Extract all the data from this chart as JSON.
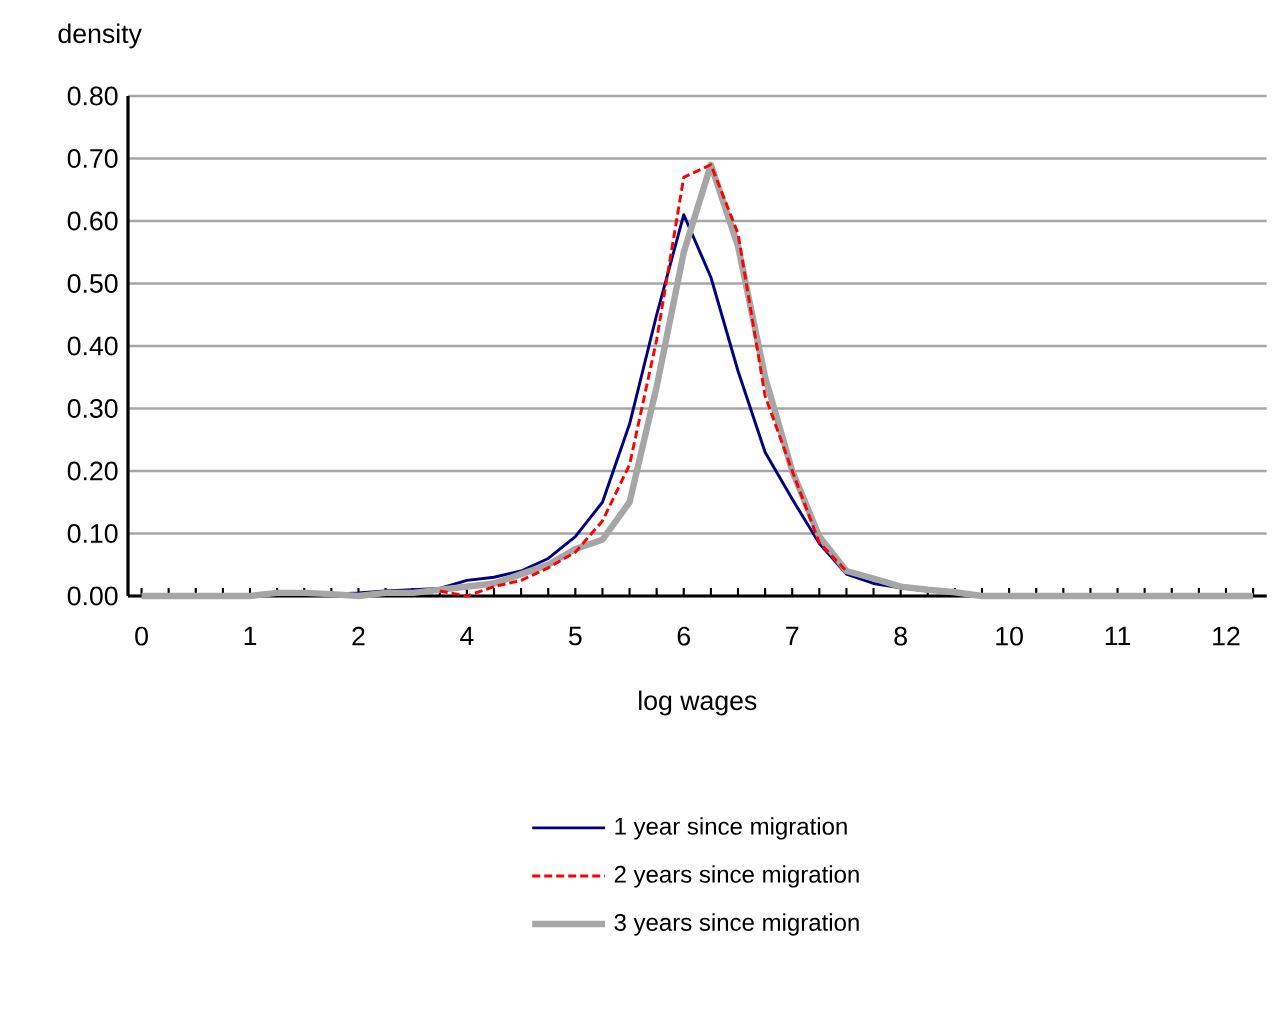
{
  "chart_data": {
    "type": "line",
    "xlabel": "log wages",
    "ylabel": "density",
    "categories": [
      "0",
      null,
      null,
      null,
      "1",
      null,
      null,
      null,
      "2",
      null,
      null,
      null,
      "4",
      null,
      null,
      null,
      "5",
      null,
      null,
      null,
      "6",
      null,
      null,
      null,
      "7",
      null,
      null,
      null,
      "8",
      null,
      null,
      null,
      "10",
      null,
      null,
      null,
      "11",
      null,
      null,
      null,
      "12",
      null
    ],
    "ylim": [
      0,
      0.8
    ],
    "yticks": [
      {
        "value": 0,
        "label": "0.00"
      },
      {
        "value": 0.1,
        "label": "0.10"
      },
      {
        "value": 0.2,
        "label": "0.20"
      },
      {
        "value": 0.3,
        "label": "0.30"
      },
      {
        "value": 0.4,
        "label": "0.40"
      },
      {
        "value": 0.5,
        "label": "0.50"
      },
      {
        "value": 0.6,
        "label": "0.60"
      },
      {
        "value": 0.7,
        "label": "0.70"
      },
      {
        "value": 0.8,
        "label": "0.80"
      }
    ],
    "grid": "y",
    "legend": "bottom",
    "marker": "none",
    "series": [
      {
        "name": "1 year since migration",
        "color": "#000080",
        "line_style": "solid",
        "values": [
          null,
          null,
          null,
          null,
          null,
          null,
          null,
          0.003,
          0.005,
          0.008,
          0.01,
          0.012,
          0.025,
          0.03,
          0.04,
          0.06,
          0.095,
          0.15,
          0.275,
          0.45,
          0.61,
          0.51,
          0.36,
          0.23,
          0.155,
          0.084,
          0.035,
          0.02,
          0.013,
          0.008,
          null,
          null,
          null,
          null,
          null,
          null,
          null,
          null,
          null,
          null,
          null,
          null
        ]
      },
      {
        "name": "2  years since migration",
        "color": "#ff0000",
        "line_style": "dashed",
        "values": [
          null,
          null,
          null,
          null,
          null,
          null,
          null,
          null,
          null,
          null,
          null,
          0.008,
          0,
          0.015,
          0.025,
          0.045,
          0.07,
          0.12,
          0.21,
          0.41,
          0.67,
          0.69,
          0.58,
          0.32,
          0.2,
          0.085,
          0.04,
          null,
          null,
          null,
          null,
          null,
          null,
          null,
          null,
          null,
          null,
          null,
          null,
          null,
          null,
          null
        ]
      },
      {
        "name": "3 years since migration",
        "color": "#a6a6a6",
        "line_style": "solid",
        "values": [
          0,
          0,
          0,
          0,
          0,
          0.005,
          0.005,
          0.003,
          0,
          0.005,
          0.005,
          0.01,
          0.015,
          0.02,
          0.035,
          0.05,
          0.075,
          0.09,
          0.15,
          0.335,
          0.55,
          0.69,
          0.56,
          0.35,
          0.2,
          0.095,
          0.04,
          0.028,
          0.015,
          0.01,
          0.006,
          0,
          0,
          0,
          0,
          0,
          0,
          0,
          0,
          0,
          0,
          0
        ]
      }
    ]
  }
}
